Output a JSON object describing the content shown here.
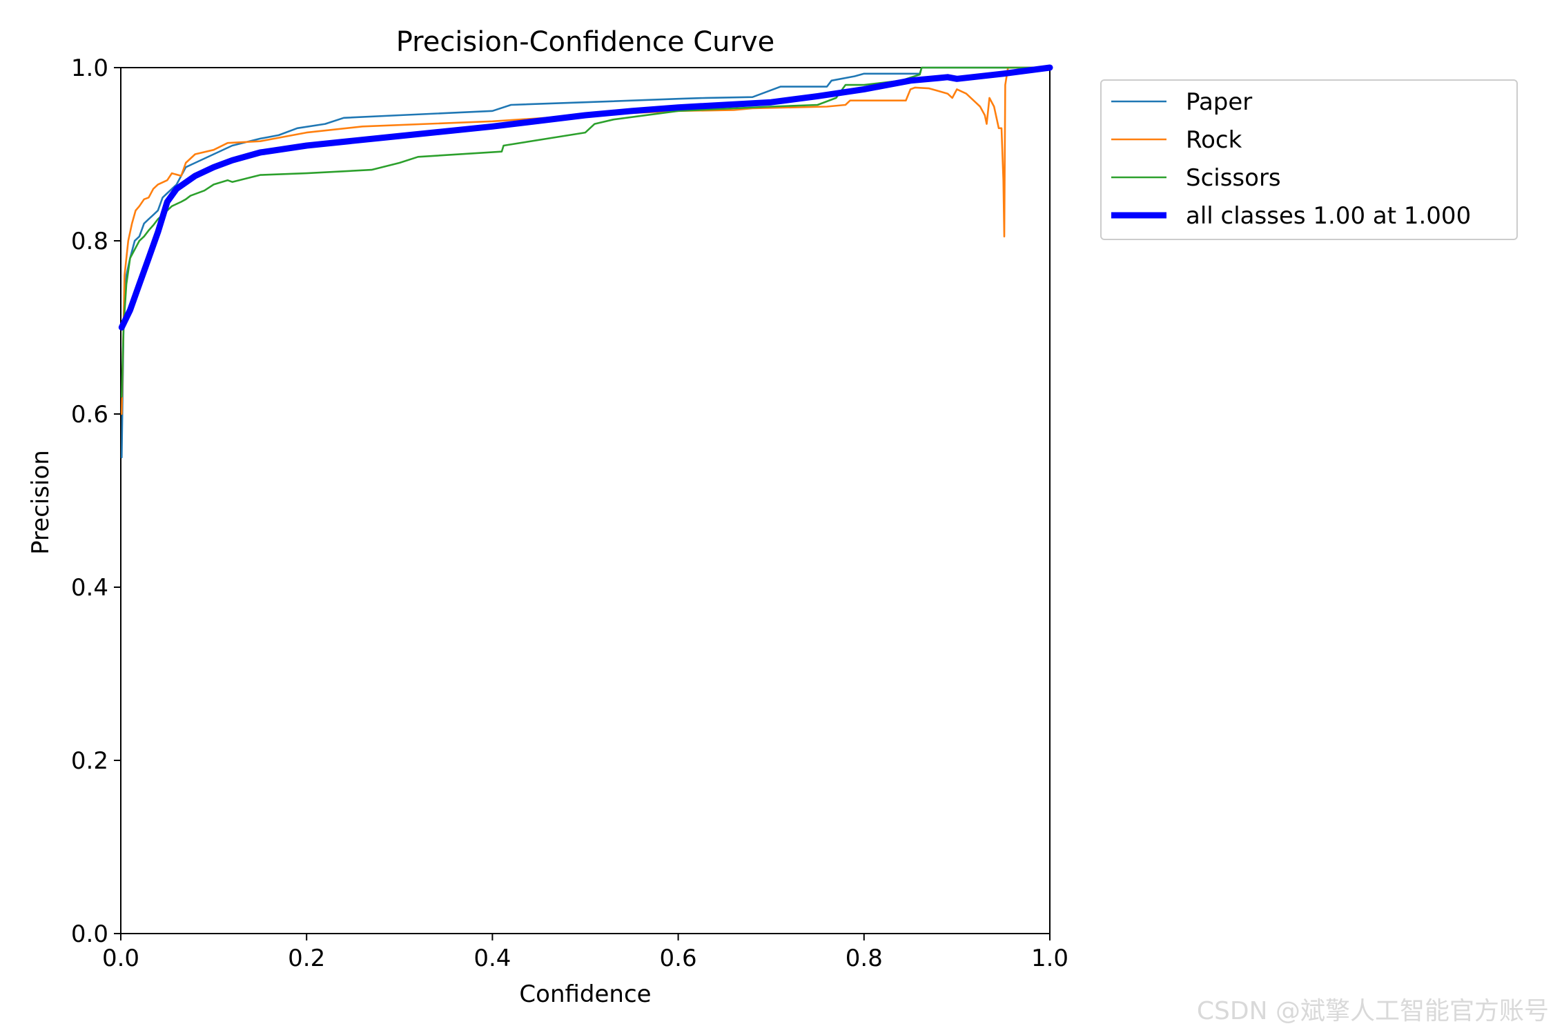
{
  "chart_data": {
    "type": "line",
    "title": "Precision-Confidence Curve",
    "xlabel": "Confidence",
    "ylabel": "Precision",
    "xlim": [
      0.0,
      1.0
    ],
    "ylim": [
      0.0,
      1.0
    ],
    "xticks": [
      "0.0",
      "0.2",
      "0.4",
      "0.6",
      "0.8",
      "1.0"
    ],
    "yticks": [
      "0.0",
      "0.2",
      "0.4",
      "0.6",
      "0.8",
      "1.0"
    ],
    "legend_position": "outside-top-right",
    "series": [
      {
        "name": "Paper",
        "color": "#1f77b4",
        "x": [
          0.001,
          0.003,
          0.006,
          0.01,
          0.015,
          0.02,
          0.025,
          0.03,
          0.035,
          0.04,
          0.045,
          0.05,
          0.06,
          0.07,
          0.08,
          0.1,
          0.12,
          0.15,
          0.17,
          0.19,
          0.22,
          0.24,
          0.3,
          0.4,
          0.42,
          0.5,
          0.6,
          0.63,
          0.68,
          0.69,
          0.71,
          0.76,
          0.765,
          0.79,
          0.8,
          0.86,
          0.862,
          1.0
        ],
        "y": [
          0.55,
          0.7,
          0.76,
          0.78,
          0.8,
          0.805,
          0.82,
          0.825,
          0.83,
          0.835,
          0.85,
          0.855,
          0.865,
          0.885,
          0.89,
          0.9,
          0.91,
          0.918,
          0.922,
          0.93,
          0.935,
          0.942,
          0.945,
          0.95,
          0.957,
          0.96,
          0.964,
          0.965,
          0.966,
          0.97,
          0.978,
          0.978,
          0.985,
          0.99,
          0.993,
          0.993,
          1.0,
          1.0
        ]
      },
      {
        "name": "Rock",
        "color": "#ff7f0e",
        "x": [
          0.001,
          0.004,
          0.008,
          0.012,
          0.016,
          0.02,
          0.025,
          0.03,
          0.035,
          0.04,
          0.05,
          0.055,
          0.065,
          0.07,
          0.08,
          0.1,
          0.115,
          0.15,
          0.2,
          0.26,
          0.4,
          0.5,
          0.6,
          0.66,
          0.68,
          0.76,
          0.78,
          0.785,
          0.84,
          0.845,
          0.85,
          0.855,
          0.87,
          0.88,
          0.89,
          0.895,
          0.9,
          0.91,
          0.92,
          0.925,
          0.93,
          0.932,
          0.935,
          0.94,
          0.943,
          0.945,
          0.948,
          0.95,
          0.951,
          0.952,
          0.955,
          1.0
        ],
        "y": [
          0.6,
          0.76,
          0.8,
          0.82,
          0.835,
          0.84,
          0.848,
          0.85,
          0.86,
          0.865,
          0.87,
          0.878,
          0.875,
          0.89,
          0.9,
          0.905,
          0.913,
          0.915,
          0.925,
          0.932,
          0.938,
          0.945,
          0.95,
          0.951,
          0.953,
          0.955,
          0.957,
          0.962,
          0.962,
          0.962,
          0.975,
          0.977,
          0.976,
          0.973,
          0.97,
          0.965,
          0.975,
          0.97,
          0.96,
          0.955,
          0.945,
          0.935,
          0.965,
          0.955,
          0.94,
          0.93,
          0.93,
          0.87,
          0.805,
          0.98,
          1.0,
          1.0
        ]
      },
      {
        "name": "Scissors",
        "color": "#2ca02c",
        "x": [
          0.001,
          0.003,
          0.006,
          0.01,
          0.015,
          0.02,
          0.025,
          0.03,
          0.035,
          0.04,
          0.05,
          0.055,
          0.065,
          0.07,
          0.075,
          0.09,
          0.1,
          0.115,
          0.12,
          0.15,
          0.2,
          0.27,
          0.3,
          0.32,
          0.41,
          0.412,
          0.5,
          0.51,
          0.53,
          0.6,
          0.7,
          0.75,
          0.77,
          0.78,
          0.8,
          0.84,
          0.86,
          0.862,
          1.0
        ],
        "y": [
          0.62,
          0.7,
          0.75,
          0.78,
          0.79,
          0.8,
          0.805,
          0.812,
          0.818,
          0.825,
          0.835,
          0.84,
          0.845,
          0.848,
          0.852,
          0.858,
          0.865,
          0.87,
          0.868,
          0.876,
          0.878,
          0.882,
          0.89,
          0.897,
          0.903,
          0.91,
          0.925,
          0.935,
          0.94,
          0.95,
          0.955,
          0.957,
          0.965,
          0.98,
          0.98,
          0.985,
          0.992,
          1.0,
          1.0
        ]
      },
      {
        "name": "all classes 1.00 at 1.000",
        "color": "#0000ff",
        "x": [
          0.001,
          0.01,
          0.02,
          0.03,
          0.04,
          0.05,
          0.06,
          0.08,
          0.1,
          0.12,
          0.15,
          0.2,
          0.3,
          0.4,
          0.5,
          0.55,
          0.6,
          0.7,
          0.75,
          0.8,
          0.85,
          0.88,
          0.89,
          0.9,
          0.95,
          1.0
        ],
        "y": [
          0.7,
          0.72,
          0.75,
          0.78,
          0.81,
          0.845,
          0.86,
          0.875,
          0.885,
          0.893,
          0.902,
          0.91,
          0.921,
          0.932,
          0.945,
          0.95,
          0.954,
          0.96,
          0.967,
          0.975,
          0.985,
          0.988,
          0.989,
          0.987,
          0.993,
          1.0
        ]
      }
    ]
  },
  "watermark": "CSDN @斌擎人工智能官方账号"
}
